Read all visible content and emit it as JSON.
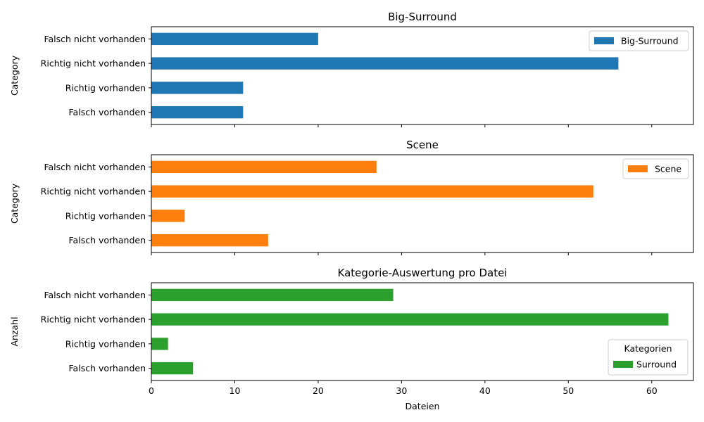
{
  "chart_data": [
    {
      "type": "bar",
      "orientation": "horizontal",
      "title": "Big-Surround",
      "ylabel": "Category",
      "xlabel": "",
      "xlim": [
        0,
        65
      ],
      "categories": [
        "Falsch vorhanden",
        "Richtig vorhanden",
        "Richtig nicht vorhanden",
        "Falsch nicht vorhanden"
      ],
      "series": [
        {
          "name": "Big-Surround",
          "color": "#1f77b4",
          "values": [
            11,
            11,
            56,
            20
          ]
        }
      ],
      "legend": {
        "title": "",
        "placement": "top-right"
      },
      "show_xticklabels": false
    },
    {
      "type": "bar",
      "orientation": "horizontal",
      "title": "Scene",
      "ylabel": "Category",
      "xlabel": "",
      "xlim": [
        0,
        65
      ],
      "categories": [
        "Falsch vorhanden",
        "Richtig vorhanden",
        "Richtig nicht vorhanden",
        "Falsch nicht vorhanden"
      ],
      "series": [
        {
          "name": "Scene",
          "color": "#ff7f0e",
          "values": [
            14,
            4,
            53,
            27
          ]
        }
      ],
      "legend": {
        "title": "",
        "placement": "top-right"
      },
      "show_xticklabels": false
    },
    {
      "type": "bar",
      "orientation": "horizontal",
      "title": "Kategorie-Auswertung pro Datei",
      "ylabel": "Anzahl",
      "xlabel": "Dateien",
      "xlim": [
        0,
        65
      ],
      "categories": [
        "Falsch vorhanden",
        "Richtig vorhanden",
        "Richtig nicht vorhanden",
        "Falsch nicht vorhanden"
      ],
      "series": [
        {
          "name": "Surround",
          "color": "#2ca02c",
          "values": [
            5,
            2,
            62,
            29
          ]
        }
      ],
      "legend": {
        "title": "Kategorien",
        "placement": "bottom-right"
      },
      "show_xticklabels": true
    }
  ],
  "x_ticks": [
    0,
    10,
    20,
    30,
    40,
    50,
    60
  ]
}
